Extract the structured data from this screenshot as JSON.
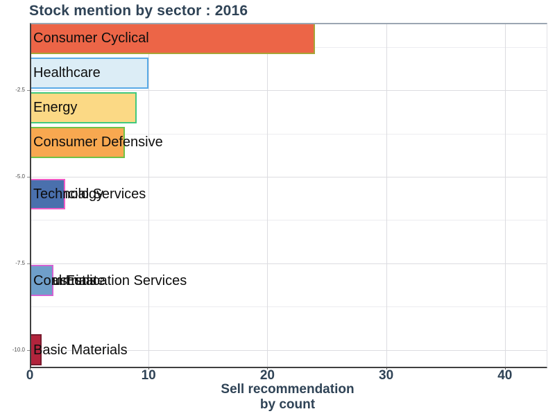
{
  "chart_data": {
    "type": "bar",
    "orientation": "horizontal",
    "title": "Stock mention by sector : 2016",
    "xlabel": "Sell recommendation by count",
    "xlabel_lines": [
      "Sell recommendation",
      "by count"
    ],
    "ylabel": "",
    "xlim": [
      0,
      43.4
    ],
    "ylim": [
      -10.45,
      -0.55
    ],
    "x_ticks": [
      0,
      10,
      20,
      30,
      40
    ],
    "x_tick_labels": [
      "0",
      "10",
      "20",
      "30",
      "40"
    ],
    "y_ticks": [
      -2.5,
      -5.0,
      -7.5,
      -10.0
    ],
    "y_tick_labels": [
      "-2.5",
      "-5.0",
      "-7.5",
      "-10.0"
    ],
    "grid": {
      "vertical_major": [
        10,
        20,
        30,
        40
      ],
      "horizontal_step": 1.25,
      "visible": true
    },
    "legend": "none",
    "bar_height": 0.9,
    "bars": [
      {
        "sector": "Consumer Cyclical",
        "count": 24,
        "y": -1,
        "fill": "#EC6547",
        "stroke": "#A8A437"
      },
      {
        "sector": "Healthcare",
        "count": 10,
        "y": -2,
        "fill": "#DCEDF6",
        "stroke": "#5AAAE6"
      },
      {
        "sector": "Energy",
        "count": 9,
        "y": -3,
        "fill": "#FBD985",
        "stroke": "#41C97D"
      },
      {
        "sector": "Consumer Defensive",
        "count": 8,
        "y": -4,
        "fill": "#F8A850",
        "stroke": "#71C145"
      },
      {
        "sector": "Financial Services",
        "count": 3,
        "y": -5.5,
        "fill": "#4A70AD",
        "stroke": "#EF5CC5"
      },
      {
        "sector": "Technology",
        "count": 3,
        "y": -5.5,
        "fill": "#4A70AD",
        "stroke": "#EF5CC5"
      },
      {
        "sector": "Industrials",
        "count": 2,
        "y": -8,
        "fill": "#6F9FCA",
        "stroke": "#D162D2"
      },
      {
        "sector": "Real Estate",
        "count": 2,
        "y": -8,
        "fill": "#6F9FCA",
        "stroke": "#D162D2"
      },
      {
        "sector": "Communication Services",
        "count": 2,
        "y": -8,
        "fill": "#6F9FCA",
        "stroke": "#D162D2"
      },
      {
        "sector": "Basic Materials",
        "count": 1,
        "y": -10,
        "fill": "#B2243C",
        "stroke": "#7A1A2E"
      }
    ],
    "colors": {
      "title": "#2F4356",
      "axis_title": "#2F4356",
      "x_tick_label": "#2F4356",
      "y_tick_label": "#4A4A4A",
      "grid_major": "#DCDCE0",
      "grid_minor": "#ECECF0",
      "axis_line": "#404040",
      "panel_top_border": "#9BA6B2",
      "background": "#FFFFFF"
    }
  }
}
